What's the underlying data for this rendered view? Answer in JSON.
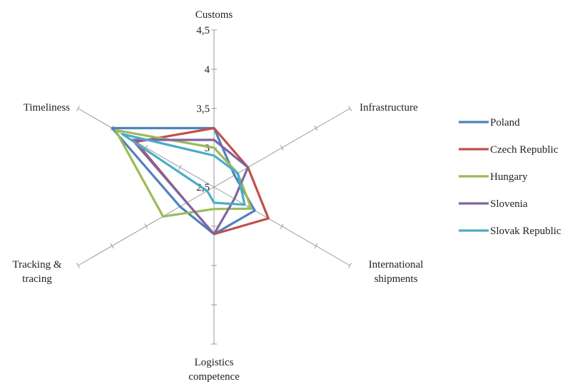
{
  "chart_data": {
    "type": "radar",
    "title": "",
    "axes": [
      "Customs",
      "Infrastructure",
      "International shipments",
      "Logistics competence",
      "Tracking & tracing",
      "Timeliness"
    ],
    "axis_label_lines": [
      [
        "Customs"
      ],
      [
        "Infrastructure"
      ],
      [
        "International",
        "shipments"
      ],
      [
        "Logistics",
        "competence"
      ],
      [
        "Tracking &",
        "tracing"
      ],
      [
        "Timeliness"
      ]
    ],
    "rlim": [
      2.5,
      4.5
    ],
    "ticks": [
      2.5,
      3,
      3.5,
      4,
      4.5
    ],
    "tick_labels": [
      "2,5",
      "3",
      "3,5",
      "4",
      "4,5"
    ],
    "legend_position": "right",
    "series": [
      {
        "name": "Poland",
        "color": "#4f81bd",
        "values": [
          3.25,
          2.8,
          3.1,
          3.1,
          3.0,
          4.0
        ]
      },
      {
        "name": "Czech Republic",
        "color": "#c0504d",
        "values": [
          3.25,
          3.0,
          3.3,
          3.1,
          2.9,
          3.65
        ]
      },
      {
        "name": "Hungary",
        "color": "#9bbb59",
        "values": [
          3.0,
          2.85,
          3.05,
          2.78,
          3.25,
          3.95
        ]
      },
      {
        "name": "Slovenia",
        "color": "#8064a2",
        "values": [
          3.1,
          3.0,
          2.8,
          3.1,
          2.9,
          3.7
        ]
      },
      {
        "name": "Slovak Republic",
        "color": "#4bacc6",
        "values": [
          2.9,
          2.85,
          2.95,
          2.7,
          2.6,
          3.85
        ]
      }
    ]
  }
}
